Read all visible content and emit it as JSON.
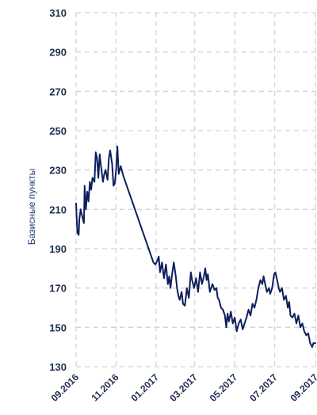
{
  "chart_data": {
    "type": "line",
    "title": "",
    "xlabel": "",
    "ylabel": "Базисные  пункты",
    "ylim": [
      130,
      310
    ],
    "yticks": [
      130,
      150,
      170,
      190,
      210,
      230,
      250,
      270,
      290,
      310
    ],
    "xlim": [
      "2016-09-01",
      "2017-09-01"
    ],
    "xticks": [
      {
        "date": "2016-09-01",
        "label": "09.2016"
      },
      {
        "date": "2016-11-01",
        "label": "11.2016"
      },
      {
        "date": "2017-01-01",
        "label": "01.2017"
      },
      {
        "date": "2017-03-01",
        "label": "03.2017"
      },
      {
        "date": "2017-05-01",
        "label": "05.2017"
      },
      {
        "date": "2017-07-01",
        "label": "07.2017"
      },
      {
        "date": "2017-09-01",
        "label": "09.2017"
      }
    ],
    "grid": true,
    "line_color": "#0d1f5c",
    "grid_color": "#d3d3d3",
    "series": [
      {
        "name": "",
        "points": [
          [
            "2016-09-01",
            213
          ],
          [
            "2016-09-02",
            205
          ],
          [
            "2016-09-03",
            198
          ],
          [
            "2016-09-05",
            197
          ],
          [
            "2016-09-06",
            205
          ],
          [
            "2016-09-08",
            210
          ],
          [
            "2016-09-10",
            207
          ],
          [
            "2016-09-13",
            203
          ],
          [
            "2016-09-14",
            222
          ],
          [
            "2016-09-16",
            210
          ],
          [
            "2016-09-18",
            219
          ],
          [
            "2016-09-20",
            214
          ],
          [
            "2016-09-22",
            224
          ],
          [
            "2016-09-24",
            220
          ],
          [
            "2016-09-26",
            226
          ],
          [
            "2016-09-29",
            224
          ],
          [
            "2016-10-01",
            239
          ],
          [
            "2016-10-03",
            236
          ],
          [
            "2016-10-05",
            226
          ],
          [
            "2016-10-07",
            238
          ],
          [
            "2016-10-09",
            232
          ],
          [
            "2016-10-12",
            224
          ],
          [
            "2016-10-14",
            228
          ],
          [
            "2016-10-16",
            230
          ],
          [
            "2016-10-19",
            225
          ],
          [
            "2016-10-21",
            236
          ],
          [
            "2016-10-23",
            240
          ],
          [
            "2016-10-26",
            233
          ],
          [
            "2016-10-28",
            222
          ],
          [
            "2016-10-30",
            223
          ],
          [
            "2016-11-01",
            230
          ],
          [
            "2016-11-03",
            242
          ],
          [
            "2016-11-05",
            228
          ],
          [
            "2016-11-08",
            232
          ],
          [
            "2016-11-12",
            227
          ],
          [
            "2016-12-28",
            183
          ],
          [
            "2016-12-31",
            182
          ],
          [
            "2017-01-03",
            184
          ],
          [
            "2017-01-05",
            186
          ],
          [
            "2017-01-07",
            178
          ],
          [
            "2017-01-10",
            183
          ],
          [
            "2017-01-13",
            175
          ],
          [
            "2017-01-16",
            182
          ],
          [
            "2017-01-19",
            172
          ],
          [
            "2017-01-21",
            176
          ],
          [
            "2017-01-23",
            170
          ],
          [
            "2017-01-25",
            176
          ],
          [
            "2017-01-28",
            183
          ],
          [
            "2017-01-31",
            176
          ],
          [
            "2017-02-02",
            170
          ],
          [
            "2017-02-04",
            166
          ],
          [
            "2017-02-06",
            164
          ],
          [
            "2017-02-09",
            168
          ],
          [
            "2017-02-11",
            162
          ],
          [
            "2017-02-14",
            161
          ],
          [
            "2017-02-17",
            170
          ],
          [
            "2017-02-20",
            165
          ],
          [
            "2017-02-23",
            178
          ],
          [
            "2017-02-25",
            174
          ],
          [
            "2017-02-28",
            170
          ],
          [
            "2017-03-03",
            175
          ],
          [
            "2017-03-06",
            168
          ],
          [
            "2017-03-09",
            178
          ],
          [
            "2017-03-12",
            172
          ],
          [
            "2017-03-15",
            176
          ],
          [
            "2017-03-17",
            180
          ],
          [
            "2017-03-19",
            174
          ],
          [
            "2017-03-21",
            177
          ],
          [
            "2017-03-24",
            168
          ],
          [
            "2017-03-28",
            172
          ],
          [
            "2017-03-31",
            169
          ],
          [
            "2017-04-03",
            170
          ],
          [
            "2017-04-05",
            165
          ],
          [
            "2017-04-07",
            164
          ],
          [
            "2017-04-10",
            160
          ],
          [
            "2017-04-13",
            159
          ],
          [
            "2017-04-16",
            156
          ],
          [
            "2017-04-18",
            150
          ],
          [
            "2017-04-20",
            157
          ],
          [
            "2017-04-22",
            153
          ],
          [
            "2017-04-25",
            158
          ],
          [
            "2017-04-28",
            152
          ],
          [
            "2017-05-01",
            155
          ],
          [
            "2017-05-04",
            148
          ],
          [
            "2017-05-07",
            152
          ],
          [
            "2017-05-10",
            154
          ],
          [
            "2017-05-13",
            149
          ],
          [
            "2017-05-16",
            152
          ],
          [
            "2017-05-19",
            155
          ],
          [
            "2017-05-22",
            159
          ],
          [
            "2017-05-25",
            156
          ],
          [
            "2017-05-28",
            162
          ],
          [
            "2017-05-31",
            160
          ],
          [
            "2017-06-03",
            164
          ],
          [
            "2017-06-06",
            170
          ],
          [
            "2017-06-09",
            174
          ],
          [
            "2017-06-12",
            172
          ],
          [
            "2017-06-14",
            176
          ],
          [
            "2017-06-17",
            171
          ],
          [
            "2017-06-19",
            168
          ],
          [
            "2017-06-22",
            170
          ],
          [
            "2017-06-24",
            167
          ],
          [
            "2017-06-27",
            170
          ],
          [
            "2017-06-30",
            177
          ],
          [
            "2017-07-02",
            178
          ],
          [
            "2017-07-04",
            175
          ],
          [
            "2017-07-07",
            170
          ],
          [
            "2017-07-09",
            168
          ],
          [
            "2017-07-12",
            170
          ],
          [
            "2017-07-15",
            164
          ],
          [
            "2017-07-18",
            166
          ],
          [
            "2017-07-21",
            160
          ],
          [
            "2017-07-23",
            163
          ],
          [
            "2017-07-25",
            156
          ],
          [
            "2017-07-28",
            155
          ],
          [
            "2017-07-31",
            157
          ],
          [
            "2017-08-03",
            152
          ],
          [
            "2017-08-06",
            156
          ],
          [
            "2017-08-09",
            150
          ],
          [
            "2017-08-12",
            152
          ],
          [
            "2017-08-15",
            148
          ],
          [
            "2017-08-18",
            146
          ],
          [
            "2017-08-21",
            147
          ],
          [
            "2017-08-24",
            142
          ],
          [
            "2017-08-27",
            140
          ],
          [
            "2017-08-29",
            142
          ],
          [
            "2017-09-01",
            142
          ]
        ]
      }
    ]
  }
}
